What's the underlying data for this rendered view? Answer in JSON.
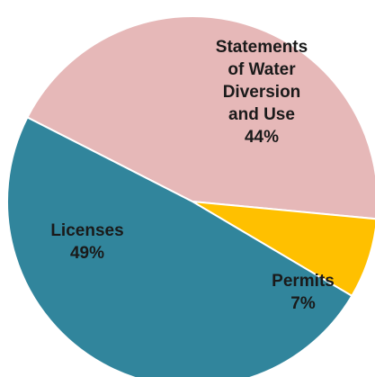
{
  "chart_data": {
    "type": "pie",
    "title": "",
    "slices": [
      {
        "label": "Statements of Water Diversion and Use",
        "label_lines": [
          "Statements",
          "of Water",
          "Diversion",
          "and Use"
        ],
        "value": 44,
        "value_label": "44%",
        "color": "#e6b8b8"
      },
      {
        "label": "Permits",
        "label_lines": [
          "Permits"
        ],
        "value": 7,
        "value_label": "7%",
        "color": "#ffc000"
      },
      {
        "label": "Licenses",
        "label_lines": [
          "Licenses"
        ],
        "value": 49,
        "value_label": "49%",
        "color": "#31859c"
      }
    ],
    "legend": "none"
  }
}
